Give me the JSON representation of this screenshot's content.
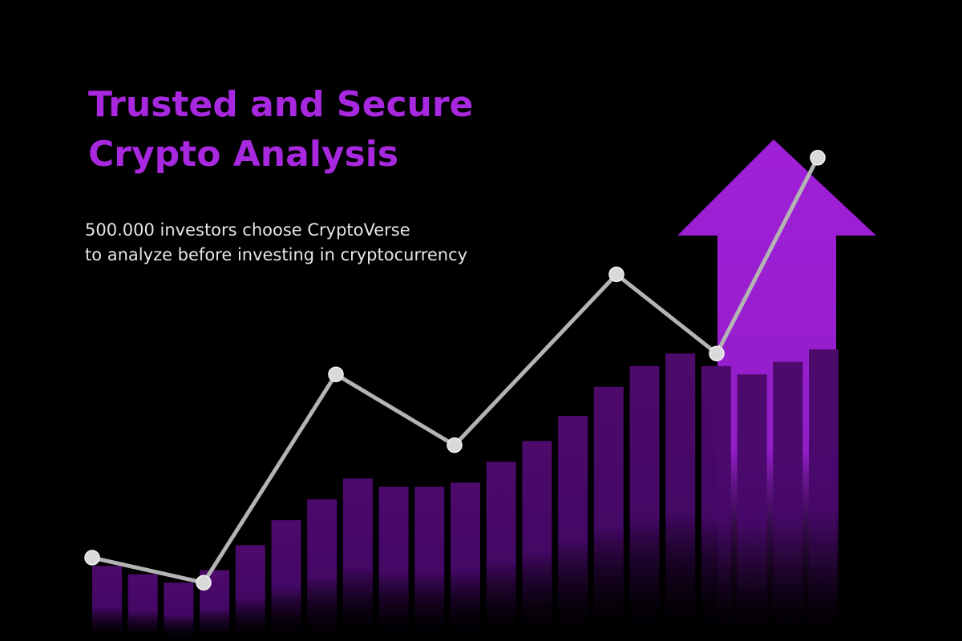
{
  "headline": {
    "line1": "Trusted and Secure",
    "line2": "Crypto Analysis"
  },
  "subtext": {
    "line1": "500.000 investors choose CryptoVerse",
    "line2": "to analyze before investing in cryptocurrency"
  },
  "colors": {
    "background": "#000000",
    "headline": "#a828e0",
    "subtext": "#e6e6e6",
    "bar": "#4d0a6b",
    "arrow": "#a020d8",
    "line": "#b4b4b4",
    "point": "#d9d9d9"
  },
  "chart_data": {
    "type": "bar",
    "bars": [
      18,
      16,
      14,
      17,
      23,
      29,
      34,
      39,
      37,
      37,
      38,
      43,
      48,
      54,
      61,
      66,
      69,
      66,
      64,
      67,
      70
    ],
    "line": [
      20,
      14,
      64,
      47,
      88,
      69,
      116
    ],
    "ylim": [
      0,
      120
    ],
    "grid": false,
    "legend": "none"
  }
}
